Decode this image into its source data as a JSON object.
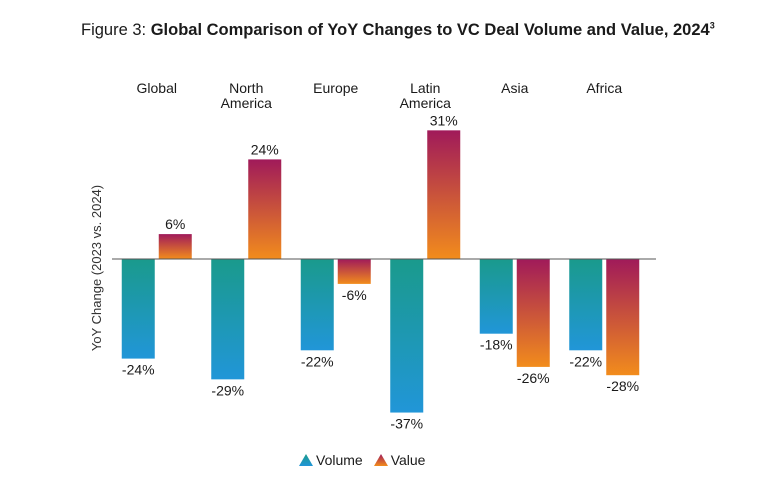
{
  "title": {
    "prefix": "Figure 3: ",
    "main": "Global Comparison of YoY Changes to VC Deal Volume and Value, 2024",
    "superscript": "3"
  },
  "colors": {
    "volume_top": "#1a9a8c",
    "volume_bottom": "#2196d8",
    "value_top": "#a01a5a",
    "value_bottom": "#f28c1c"
  },
  "chart_data": {
    "type": "bar",
    "title": "Global Comparison of YoY Changes to VC Deal Volume and Value, 2024",
    "xlabel": "",
    "ylabel": "YoY Change (2023 vs. 2024)",
    "ylim": [
      -40,
      35
    ],
    "grid": false,
    "legend_position": "bottom",
    "categories": [
      "Global",
      "North America",
      "Europe",
      "Latin America",
      "Asia",
      "Africa"
    ],
    "category_lines": [
      [
        "Global"
      ],
      [
        "North",
        "America"
      ],
      [
        "Europe"
      ],
      [
        "Latin",
        "America"
      ],
      [
        "Asia"
      ],
      [
        "Africa"
      ]
    ],
    "series": [
      {
        "name": "Volume",
        "values": [
          -24,
          -29,
          -22,
          -37,
          -18,
          -22
        ],
        "labels": [
          "-24%",
          "-29%",
          "-22%",
          "-37%",
          "-18%",
          "-22%"
        ]
      },
      {
        "name": "Value",
        "values": [
          6,
          24,
          -6,
          31,
          -26,
          -28
        ],
        "labels": [
          "6%",
          "24%",
          "-6%",
          "31%",
          "-26%",
          "-28%"
        ]
      }
    ]
  }
}
